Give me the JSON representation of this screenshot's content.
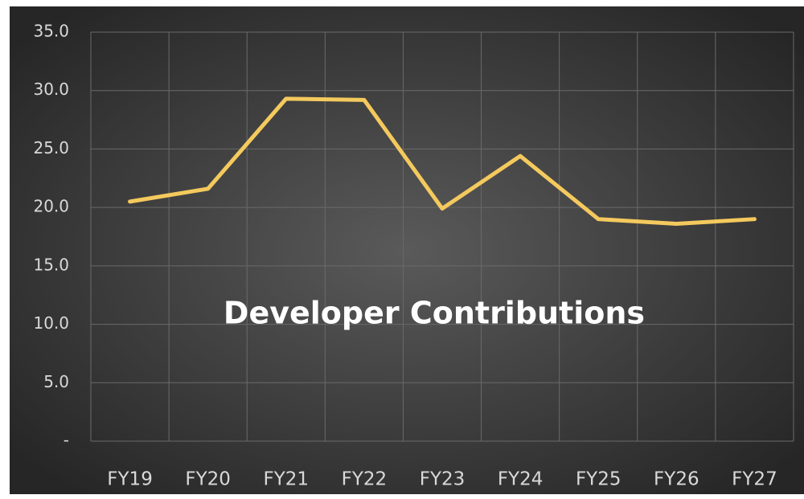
{
  "chart_data": {
    "type": "line",
    "title": "Developer Contributions",
    "categories": [
      "FY19",
      "FY20",
      "FY21",
      "FY22",
      "FY23",
      "FY24",
      "FY25",
      "FY26",
      "FY27"
    ],
    "series": [
      {
        "name": "Developer Contributions",
        "color": "#f4c95d",
        "values": [
          20.5,
          21.6,
          29.3,
          29.2,
          19.9,
          24.4,
          19.0,
          18.6,
          19.0
        ]
      }
    ],
    "ylim": [
      0,
      35
    ],
    "yticks": [
      {
        "value": 0,
        "label": "-"
      },
      {
        "value": 5,
        "label": "5.0"
      },
      {
        "value": 10,
        "label": "10.0"
      },
      {
        "value": 15,
        "label": "15.0"
      },
      {
        "value": 20,
        "label": "20.0"
      },
      {
        "value": 25,
        "label": "25.0"
      },
      {
        "value": 30,
        "label": "30.0"
      },
      {
        "value": 35,
        "label": "35.0"
      }
    ],
    "grid": true
  }
}
